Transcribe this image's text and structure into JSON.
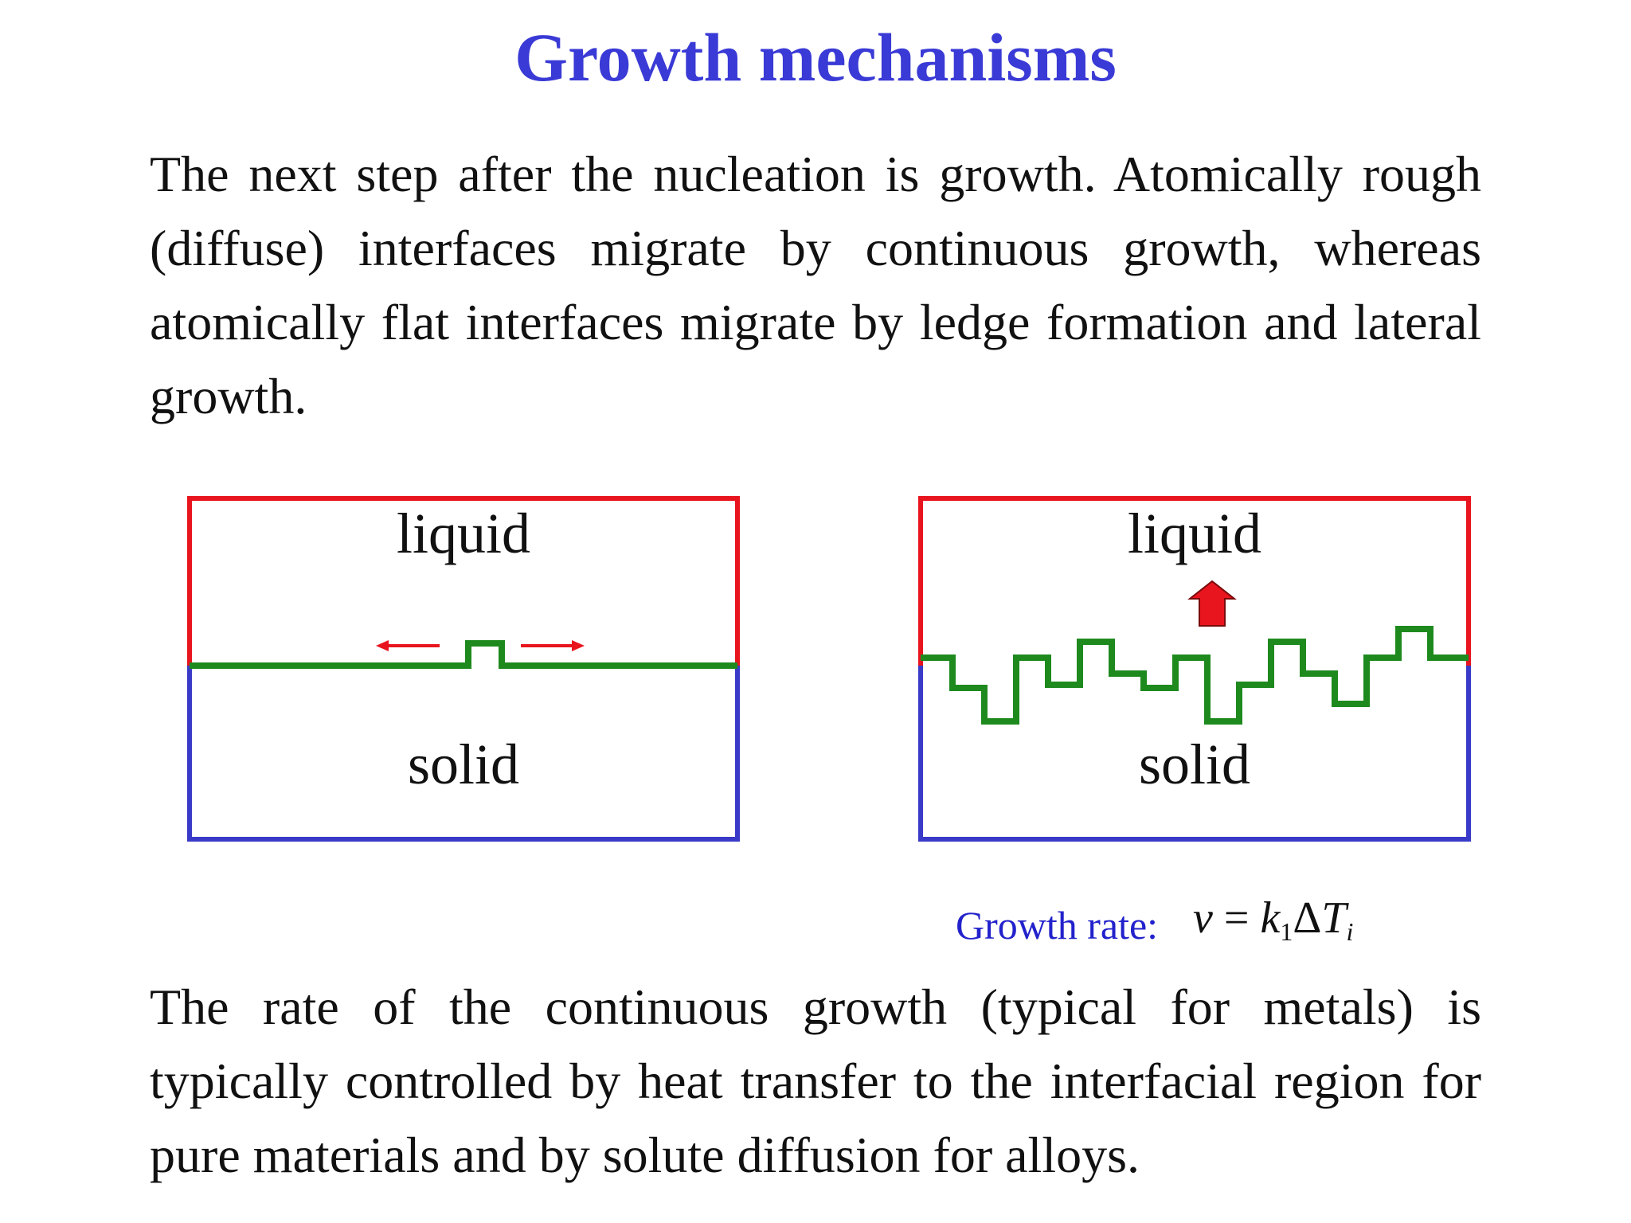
{
  "title": "Growth mechanisms",
  "paragraph1": "The next step after the nucleation is growth. Atomically rough (diffuse) interfaces migrate by continuous growth, whereas atomically flat interfaces migrate by ledge formation and lateral growth.",
  "diagrams": {
    "left": {
      "top_label": "liquid",
      "bottom_label": "solid"
    },
    "right": {
      "top_label": "liquid",
      "bottom_label": "solid"
    }
  },
  "growth_rate": {
    "label": "Growth rate:",
    "v": "v",
    "eq": " = ",
    "k": "k",
    "k_sub": "1",
    "delta": "Δ",
    "T": "T",
    "T_sub": "i"
  },
  "paragraph2": "The rate of the continuous growth (typical for metals) is typically controlled by heat transfer to the interfacial region for pure materials and by solute diffusion for alloys.",
  "colors": {
    "title": "#3a3ad6",
    "liquid_border": "#e8141e",
    "solid_border": "#3a3ac8",
    "interface": "#1e8a1e",
    "arrow": "#e8141e",
    "growth_rate_label": "#2222cc"
  }
}
